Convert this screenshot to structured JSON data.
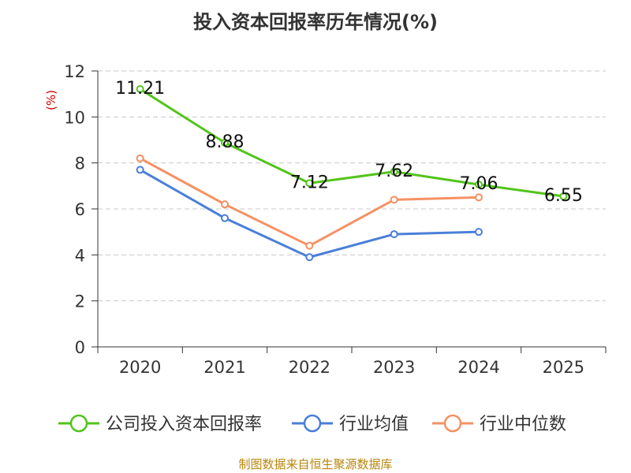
{
  "chart_data": {
    "type": "line",
    "title": "投入资本回报率历年情况(%)",
    "ylabel": "(%)",
    "xlabel": "",
    "categories": [
      "2020",
      "2021",
      "2022",
      "2023",
      "2024",
      "2025"
    ],
    "ylim": [
      0,
      12
    ],
    "yticks": [
      0,
      2,
      4,
      6,
      8,
      10,
      12
    ],
    "grid": true,
    "legend_position": "bottom",
    "series": [
      {
        "name": "公司投入资本回报率",
        "color": "#52c41a",
        "values": [
          11.21,
          8.88,
          7.12,
          7.62,
          7.06,
          6.55
        ],
        "data_labels": [
          "11.21",
          "8.88",
          "7.12",
          "7.62",
          "7.06",
          "6.55"
        ]
      },
      {
        "name": "行业均值",
        "color": "#4a7fd9",
        "values": [
          7.7,
          5.6,
          3.9,
          4.9,
          5.0,
          null
        ]
      },
      {
        "name": "行业中位数",
        "color": "#f59162",
        "values": [
          8.2,
          6.2,
          4.4,
          6.4,
          6.5,
          null
        ]
      }
    ]
  },
  "footer": {
    "source": "制图数据来自恒生聚源数据库"
  }
}
